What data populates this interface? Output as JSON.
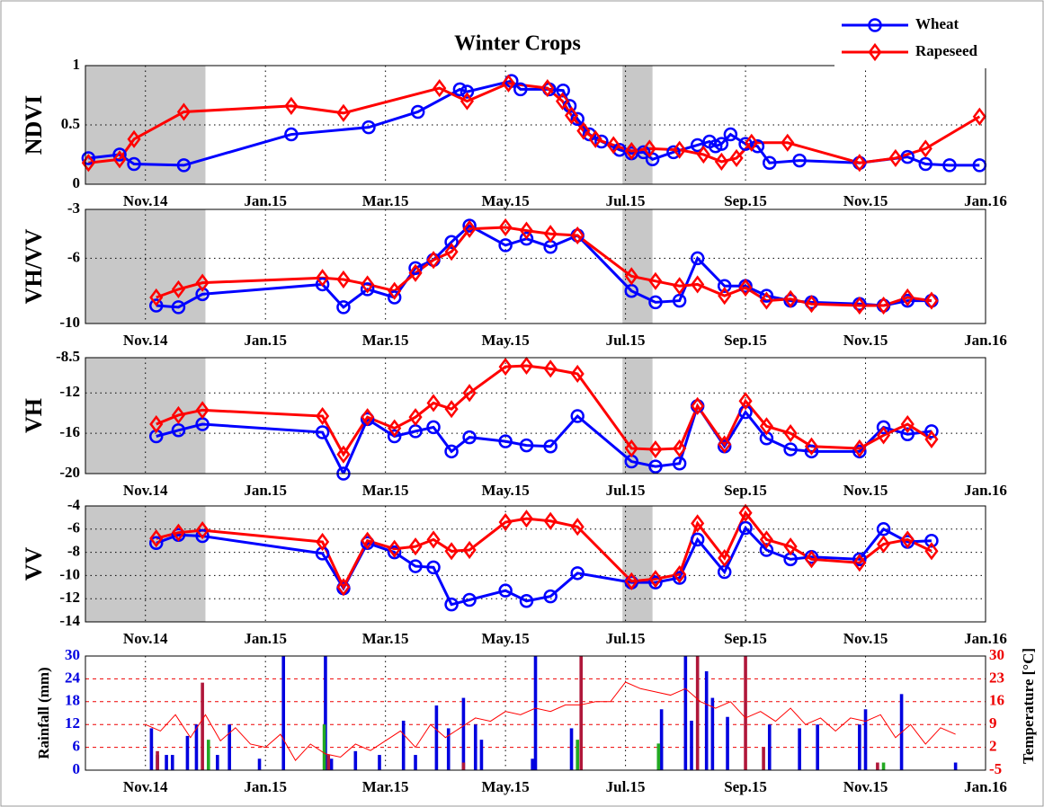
{
  "chart_data": [
    {
      "type": "line",
      "title": "Winter Crops",
      "ylabel": "NDVI",
      "legend": "top-right",
      "xlim": [
        -1,
        14
      ],
      "ylim": [
        0,
        1
      ],
      "yticks": [
        0,
        0.5,
        1
      ],
      "grid": true,
      "shaded": [
        [
          -1,
          1
        ],
        [
          7.95,
          8.45
        ]
      ],
      "xticks": [
        {
          "value": 0,
          "label": "Nov.14"
        },
        {
          "value": 2,
          "label": "Jan.15"
        },
        {
          "value": 4,
          "label": "Mar.15"
        },
        {
          "value": 6,
          "label": "May.15"
        },
        {
          "value": 8,
          "label": "Jul.15"
        },
        {
          "value": 10,
          "label": "Sep.15"
        },
        {
          "value": 12,
          "label": "Nov.15"
        },
        {
          "value": 14,
          "label": "Jan.16"
        }
      ],
      "series": [
        {
          "name": "Wheat",
          "color": "#0000ff",
          "marker": "circle",
          "x": [
            -0.95,
            -0.43,
            -0.19,
            0.64,
            2.43,
            3.72,
            4.54,
            5.24,
            5.36,
            6.1,
            6.25,
            6.73,
            6.96,
            7.07,
            7.2,
            7.4,
            7.6,
            7.9,
            8.1,
            8.3,
            8.45,
            8.8,
            9.2,
            9.4,
            9.5,
            9.6,
            9.75,
            10.0,
            10.2,
            10.4,
            10.9,
            11.9,
            12.7,
            13.0,
            13.4,
            13.9
          ],
          "values": [
            0.22,
            0.25,
            0.17,
            0.16,
            0.42,
            0.48,
            0.61,
            0.8,
            0.78,
            0.87,
            0.8,
            0.8,
            0.79,
            0.66,
            0.55,
            0.42,
            0.36,
            0.29,
            0.26,
            0.27,
            0.21,
            0.27,
            0.33,
            0.36,
            0.32,
            0.34,
            0.42,
            0.34,
            0.32,
            0.18,
            0.2,
            0.18,
            0.23,
            0.17,
            0.16,
            0.16
          ]
        },
        {
          "name": "Rapeseed",
          "color": "#ff0000",
          "marker": "diamond",
          "x": [
            -0.95,
            -0.43,
            -0.19,
            0.64,
            2.43,
            3.3,
            4.9,
            5.36,
            6.05,
            6.7,
            6.95,
            7.1,
            7.3,
            7.5,
            7.8,
            8.1,
            8.4,
            8.9,
            9.3,
            9.6,
            9.85,
            10.1,
            10.7,
            11.9,
            12.5,
            13.0,
            13.9
          ],
          "values": [
            0.18,
            0.21,
            0.38,
            0.61,
            0.66,
            0.6,
            0.81,
            0.7,
            0.85,
            0.81,
            0.7,
            0.58,
            0.45,
            0.38,
            0.33,
            0.28,
            0.3,
            0.29,
            0.25,
            0.19,
            0.22,
            0.35,
            0.35,
            0.18,
            0.22,
            0.3,
            0.57
          ]
        }
      ]
    },
    {
      "type": "line",
      "ylabel": "VH/VV",
      "xlim": [
        -1,
        14
      ],
      "ylim": [
        -10,
        -3
      ],
      "yticks": [
        -10,
        -6,
        -3
      ],
      "grid": true,
      "shaded": [
        [
          -1,
          1
        ],
        [
          7.95,
          8.45
        ]
      ],
      "xticks": [
        {
          "value": 0,
          "label": "Nov.14"
        },
        {
          "value": 2,
          "label": "Jan.15"
        },
        {
          "value": 4,
          "label": "Mar.15"
        },
        {
          "value": 6,
          "label": "May.15"
        },
        {
          "value": 8,
          "label": "Jul.15"
        },
        {
          "value": 10,
          "label": "Sep.15"
        },
        {
          "value": 12,
          "label": "Nov.15"
        },
        {
          "value": 14,
          "label": "Jan.16"
        }
      ],
      "series": [
        {
          "color": "#0000ff",
          "marker": "circle",
          "x": [
            0.18,
            0.55,
            0.95,
            2.95,
            3.3,
            3.7,
            4.15,
            4.5,
            4.8,
            5.1,
            5.4,
            6.0,
            6.35,
            6.75,
            7.2,
            8.1,
            8.5,
            8.9,
            9.2,
            9.65,
            10.0,
            10.35,
            10.75,
            11.1,
            11.9,
            12.3,
            12.7,
            13.1
          ],
          "values": [
            -8.9,
            -9.0,
            -8.2,
            -7.6,
            -9.0,
            -7.9,
            -8.4,
            -6.6,
            -6.1,
            -5.0,
            -4.0,
            -5.2,
            -4.8,
            -5.3,
            -4.6,
            -8.0,
            -8.7,
            -8.6,
            -6.0,
            -7.7,
            -7.7,
            -8.3,
            -8.6,
            -8.7,
            -8.8,
            -8.9,
            -8.6,
            -8.6
          ]
        },
        {
          "color": "#ff0000",
          "marker": "diamond",
          "x": [
            0.18,
            0.55,
            0.95,
            2.95,
            3.3,
            3.7,
            4.15,
            4.5,
            4.8,
            5.1,
            5.4,
            6.0,
            6.35,
            6.75,
            7.2,
            8.1,
            8.5,
            8.9,
            9.2,
            9.65,
            10.0,
            10.35,
            10.75,
            11.1,
            11.9,
            12.3,
            12.7,
            13.1
          ],
          "values": [
            -8.4,
            -7.9,
            -7.5,
            -7.2,
            -7.3,
            -7.6,
            -8.0,
            -6.9,
            -6.1,
            -5.6,
            -4.2,
            -4.1,
            -4.3,
            -4.5,
            -4.6,
            -7.1,
            -7.4,
            -7.7,
            -7.6,
            -8.3,
            -7.8,
            -8.6,
            -8.5,
            -8.8,
            -8.9,
            -8.9,
            -8.4,
            -8.6
          ]
        }
      ]
    },
    {
      "type": "line",
      "ylabel": "VH",
      "xlim": [
        -1,
        14
      ],
      "ylim": [
        -20,
        -8.5
      ],
      "yticks": [
        -20,
        -16,
        -12,
        -8.5
      ],
      "grid": true,
      "shaded": [
        [
          -1,
          1
        ],
        [
          7.95,
          8.45
        ]
      ],
      "xticks": [
        {
          "value": 0,
          "label": "Nov.14"
        },
        {
          "value": 2,
          "label": "Jan.15"
        },
        {
          "value": 4,
          "label": "Mar.15"
        },
        {
          "value": 6,
          "label": "May.15"
        },
        {
          "value": 8,
          "label": "Jul.15"
        },
        {
          "value": 10,
          "label": "Sep.15"
        },
        {
          "value": 12,
          "label": "Nov.15"
        },
        {
          "value": 14,
          "label": "Jan.16"
        }
      ],
      "series": [
        {
          "color": "#0000ff",
          "marker": "circle",
          "x": [
            0.18,
            0.55,
            0.95,
            2.95,
            3.3,
            3.7,
            4.15,
            4.5,
            4.8,
            5.1,
            5.4,
            6.0,
            6.35,
            6.75,
            7.2,
            8.1,
            8.5,
            8.9,
            9.2,
            9.65,
            10.0,
            10.35,
            10.75,
            11.1,
            11.9,
            12.3,
            12.7,
            13.1
          ],
          "values": [
            -16.3,
            -15.7,
            -15.1,
            -15.9,
            -20.0,
            -14.6,
            -16.3,
            -15.8,
            -15.4,
            -17.8,
            -16.4,
            -16.8,
            -17.2,
            -17.3,
            -14.3,
            -18.8,
            -19.3,
            -19.0,
            -13.3,
            -17.3,
            -13.9,
            -16.5,
            -17.6,
            -17.8,
            -17.8,
            -15.4,
            -16.1,
            -15.8
          ]
        },
        {
          "color": "#ff0000",
          "marker": "diamond",
          "x": [
            0.18,
            0.55,
            0.95,
            2.95,
            3.3,
            3.7,
            4.15,
            4.5,
            4.8,
            5.1,
            5.4,
            6.0,
            6.35,
            6.75,
            7.2,
            8.1,
            8.5,
            8.9,
            9.2,
            9.65,
            10.0,
            10.35,
            10.75,
            11.1,
            11.9,
            12.3,
            12.7,
            13.1
          ],
          "values": [
            -15.1,
            -14.2,
            -13.7,
            -14.3,
            -18.1,
            -14.4,
            -15.5,
            -14.4,
            -13.0,
            -13.6,
            -12.0,
            -9.4,
            -9.3,
            -9.6,
            -10.1,
            -17.5,
            -17.6,
            -17.5,
            -13.3,
            -17.1,
            -12.8,
            -15.3,
            -16.0,
            -17.3,
            -17.5,
            -16.2,
            -15.1,
            -16.6
          ]
        }
      ]
    },
    {
      "type": "line",
      "ylabel": "VV",
      "xlim": [
        -1,
        14
      ],
      "ylim": [
        -14,
        -4
      ],
      "yticks": [
        -14,
        -12,
        -10,
        -8,
        -6,
        -4
      ],
      "grid": true,
      "shaded": [
        [
          -1,
          1
        ],
        [
          7.95,
          8.45
        ]
      ],
      "xticks": [
        {
          "value": 0,
          "label": "Nov.14"
        },
        {
          "value": 2,
          "label": "Jan.15"
        },
        {
          "value": 4,
          "label": "Mar.15"
        },
        {
          "value": 6,
          "label": "May.15"
        },
        {
          "value": 8,
          "label": "Jul.15"
        },
        {
          "value": 10,
          "label": "Sep.15"
        },
        {
          "value": 12,
          "label": "Nov.15"
        },
        {
          "value": 14,
          "label": "Jan.16"
        }
      ],
      "series": [
        {
          "color": "#0000ff",
          "marker": "circle",
          "x": [
            0.18,
            0.55,
            0.95,
            2.95,
            3.3,
            3.7,
            4.15,
            4.5,
            4.8,
            5.1,
            5.4,
            6.0,
            6.35,
            6.75,
            7.2,
            8.1,
            8.5,
            8.9,
            9.2,
            9.65,
            10.0,
            10.35,
            10.75,
            11.1,
            11.9,
            12.3,
            12.7,
            13.1
          ],
          "values": [
            -7.2,
            -6.5,
            -6.6,
            -8.1,
            -11.1,
            -7.2,
            -8.0,
            -9.2,
            -9.3,
            -12.5,
            -12.1,
            -11.3,
            -12.2,
            -11.8,
            -9.8,
            -10.6,
            -10.6,
            -10.2,
            -6.9,
            -9.7,
            -5.9,
            -7.8,
            -8.6,
            -8.4,
            -8.6,
            -6.0,
            -7.1,
            -7.0
          ]
        },
        {
          "color": "#ff0000",
          "marker": "diamond",
          "x": [
            0.18,
            0.55,
            0.95,
            2.95,
            3.3,
            3.7,
            4.15,
            4.5,
            4.8,
            5.1,
            5.4,
            6.0,
            6.35,
            6.75,
            7.2,
            8.1,
            8.5,
            8.9,
            9.2,
            9.65,
            10.0,
            10.35,
            10.75,
            11.1,
            11.9,
            12.3,
            12.7,
            13.1
          ],
          "values": [
            -6.8,
            -6.3,
            -6.1,
            -7.1,
            -11.0,
            -7.0,
            -7.7,
            -7.5,
            -6.9,
            -7.9,
            -7.8,
            -5.4,
            -5.1,
            -5.3,
            -5.8,
            -10.5,
            -10.3,
            -9.9,
            -5.5,
            -8.5,
            -4.6,
            -6.9,
            -7.5,
            -8.6,
            -8.9,
            -7.3,
            -6.9,
            -7.9
          ]
        }
      ]
    },
    {
      "type": "combo",
      "ylabel": "Rainfall (mm)",
      "y2label": "Temperature [°C]",
      "xlim": [
        -1,
        14
      ],
      "ylim": [
        0,
        30
      ],
      "yticks": [
        0,
        6,
        12,
        18,
        24,
        30
      ],
      "y2lim": [
        -5,
        30
      ],
      "y2ticks": [
        -5,
        2,
        9,
        16,
        23,
        30
      ],
      "grid": true,
      "xticks": [
        {
          "value": 0,
          "label": "Nov.14"
        },
        {
          "value": 2,
          "label": "Jan.15"
        },
        {
          "value": 4,
          "label": "Mar.15"
        },
        {
          "value": 6,
          "label": "May.15"
        },
        {
          "value": 8,
          "label": "Jul.15"
        },
        {
          "value": 10,
          "label": "Sep.15"
        },
        {
          "value": 12,
          "label": "Nov.15"
        },
        {
          "value": 14,
          "label": "Jan.16"
        }
      ],
      "series": [
        {
          "kind": "bar",
          "color": "#0000e0",
          "x": [
            0.1,
            0.2,
            0.35,
            0.45,
            0.7,
            0.85,
            1.2,
            1.4,
            1.9,
            2.3,
            3.0,
            3.1,
            3.5,
            3.9,
            4.3,
            4.5,
            4.85,
            5.05,
            5.3,
            5.5,
            5.6,
            6.45,
            6.5,
            7.1,
            8.6,
            9.0,
            9.1,
            9.35,
            9.45,
            9.7,
            10.4,
            10.9,
            11.2,
            11.9,
            12.0,
            12.6,
            13.5
          ],
          "values": [
            11,
            4,
            4,
            4,
            9,
            12,
            4,
            12,
            3,
            30,
            30,
            3,
            5,
            4,
            13,
            4,
            17,
            11,
            19,
            12,
            8,
            3,
            30,
            11,
            16,
            30,
            13,
            26,
            19,
            14,
            12,
            11,
            12,
            12,
            16,
            20,
            2
          ]
        },
        {
          "kind": "bar",
          "color": "#b0173a",
          "x": [
            0.2,
            0.95,
            3.05,
            5.3,
            7.26,
            9.2,
            10.0,
            10.3,
            12.2
          ],
          "values": [
            5,
            23,
            4,
            2,
            30,
            30,
            30,
            6,
            2
          ]
        },
        {
          "kind": "bar",
          "color": "#22aa22",
          "x": [
            1.05,
            2.98,
            7.2,
            8.55,
            12.3
          ],
          "values": [
            8,
            12,
            8,
            7,
            2
          ]
        },
        {
          "kind": "line",
          "axis": "y2",
          "color": "#ff0000",
          "x": [
            0,
            0.25,
            0.5,
            0.75,
            1,
            1.25,
            1.5,
            1.75,
            2,
            2.25,
            2.5,
            2.75,
            3,
            3.25,
            3.5,
            3.75,
            4,
            4.25,
            4.5,
            4.75,
            5,
            5.25,
            5.5,
            5.75,
            6,
            6.25,
            6.5,
            6.75,
            7,
            7.25,
            7.5,
            7.75,
            8,
            8.25,
            8.5,
            8.75,
            9,
            9.25,
            9.5,
            9.75,
            10,
            10.25,
            10.5,
            10.75,
            11,
            11.25,
            11.5,
            11.75,
            12,
            12.25,
            12.5,
            12.75,
            13,
            13.25,
            13.5
          ],
          "values": [
            9,
            7,
            12,
            5,
            12,
            4,
            8,
            3,
            2,
            6,
            -2,
            3,
            0,
            -1,
            3,
            1,
            4,
            7,
            2,
            9,
            5,
            8,
            11,
            10,
            13,
            12,
            14,
            13,
            15,
            15,
            16,
            16,
            22,
            20,
            19,
            18,
            20,
            16,
            14,
            16,
            11,
            13,
            10,
            14,
            9,
            11,
            7,
            11,
            10,
            12,
            5,
            9,
            3,
            8,
            6
          ]
        }
      ]
    }
  ]
}
